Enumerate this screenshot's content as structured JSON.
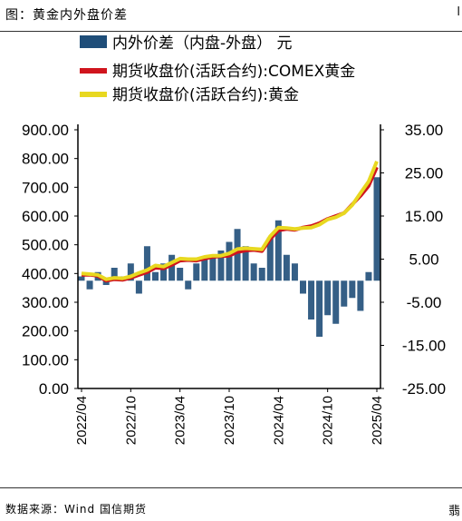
{
  "figure": {
    "title": "图：黄金内外盘价差",
    "source": "数据来源：Wind 国信期货",
    "edge_top": "l",
    "edge_bottom": "翡"
  },
  "colors": {
    "bar": "#1f4e79",
    "comex_line": "#d0141d",
    "sge_line": "#e8d820"
  },
  "chart_data": {
    "type": "bar+line",
    "legend": [
      {
        "name": "内外价差（内盘-外盘） 元",
        "kind": "bar",
        "axis": "right"
      },
      {
        "name": "期货收盘价(活跃合约):COMEX黄金",
        "kind": "line",
        "axis": "left"
      },
      {
        "name": "期货收盘价(活跃合约):黄金",
        "kind": "line",
        "axis": "left"
      }
    ],
    "left_axis": {
      "min": 0,
      "max": 900,
      "ticks": [
        "0.00",
        "100.00",
        "200.00",
        "300.00",
        "400.00",
        "500.00",
        "600.00",
        "700.00",
        "800.00",
        "900.00"
      ]
    },
    "right_axis": {
      "min": -25,
      "max": 35,
      "ticks": [
        "-25.00",
        "-15.00",
        "-5.00",
        "5.00",
        "15.00",
        "25.00",
        "35.00"
      ]
    },
    "x_ticks": [
      "2022/04",
      "2022/10",
      "2023/04",
      "2023/10",
      "2024/04",
      "2024/10",
      "2025/04"
    ],
    "x_range": [
      "2022-04",
      "2025-04"
    ],
    "dates": [
      "2022-04",
      "2022-05",
      "2022-06",
      "2022-07",
      "2022-08",
      "2022-09",
      "2022-10",
      "2022-11",
      "2022-12",
      "2023-01",
      "2023-02",
      "2023-03",
      "2023-04",
      "2023-05",
      "2023-06",
      "2023-07",
      "2023-08",
      "2023-09",
      "2023-10",
      "2023-11",
      "2023-12",
      "2024-01",
      "2024-02",
      "2024-03",
      "2024-04",
      "2024-05",
      "2024-06",
      "2024-07",
      "2024-08",
      "2024-09",
      "2024-10",
      "2024-11",
      "2024-12",
      "2025-01",
      "2025-02",
      "2025-03",
      "2025-04"
    ],
    "comex_gold": [
      395,
      396,
      392,
      375,
      380,
      378,
      385,
      395,
      405,
      420,
      418,
      430,
      445,
      447,
      445,
      452,
      458,
      460,
      462,
      475,
      480,
      482,
      478,
      520,
      550,
      555,
      552,
      560,
      565,
      575,
      590,
      600,
      610,
      640,
      670,
      705,
      770
    ],
    "sge_gold": [
      400,
      398,
      395,
      380,
      385,
      383,
      390,
      402,
      412,
      428,
      424,
      438,
      452,
      450,
      450,
      458,
      462,
      462,
      470,
      485,
      488,
      486,
      484,
      530,
      560,
      558,
      555,
      558,
      560,
      570,
      588,
      596,
      610,
      638,
      680,
      720,
      790
    ],
    "spread": [
      1,
      -2,
      2,
      -1,
      3,
      1,
      4,
      -3,
      8,
      2,
      4,
      6,
      3,
      -2,
      4,
      5,
      6,
      7,
      9,
      12,
      8,
      4,
      3,
      10,
      14,
      6,
      4,
      -3,
      -9,
      -13,
      -8,
      -10,
      -6,
      -4,
      -7,
      2,
      24
    ]
  }
}
